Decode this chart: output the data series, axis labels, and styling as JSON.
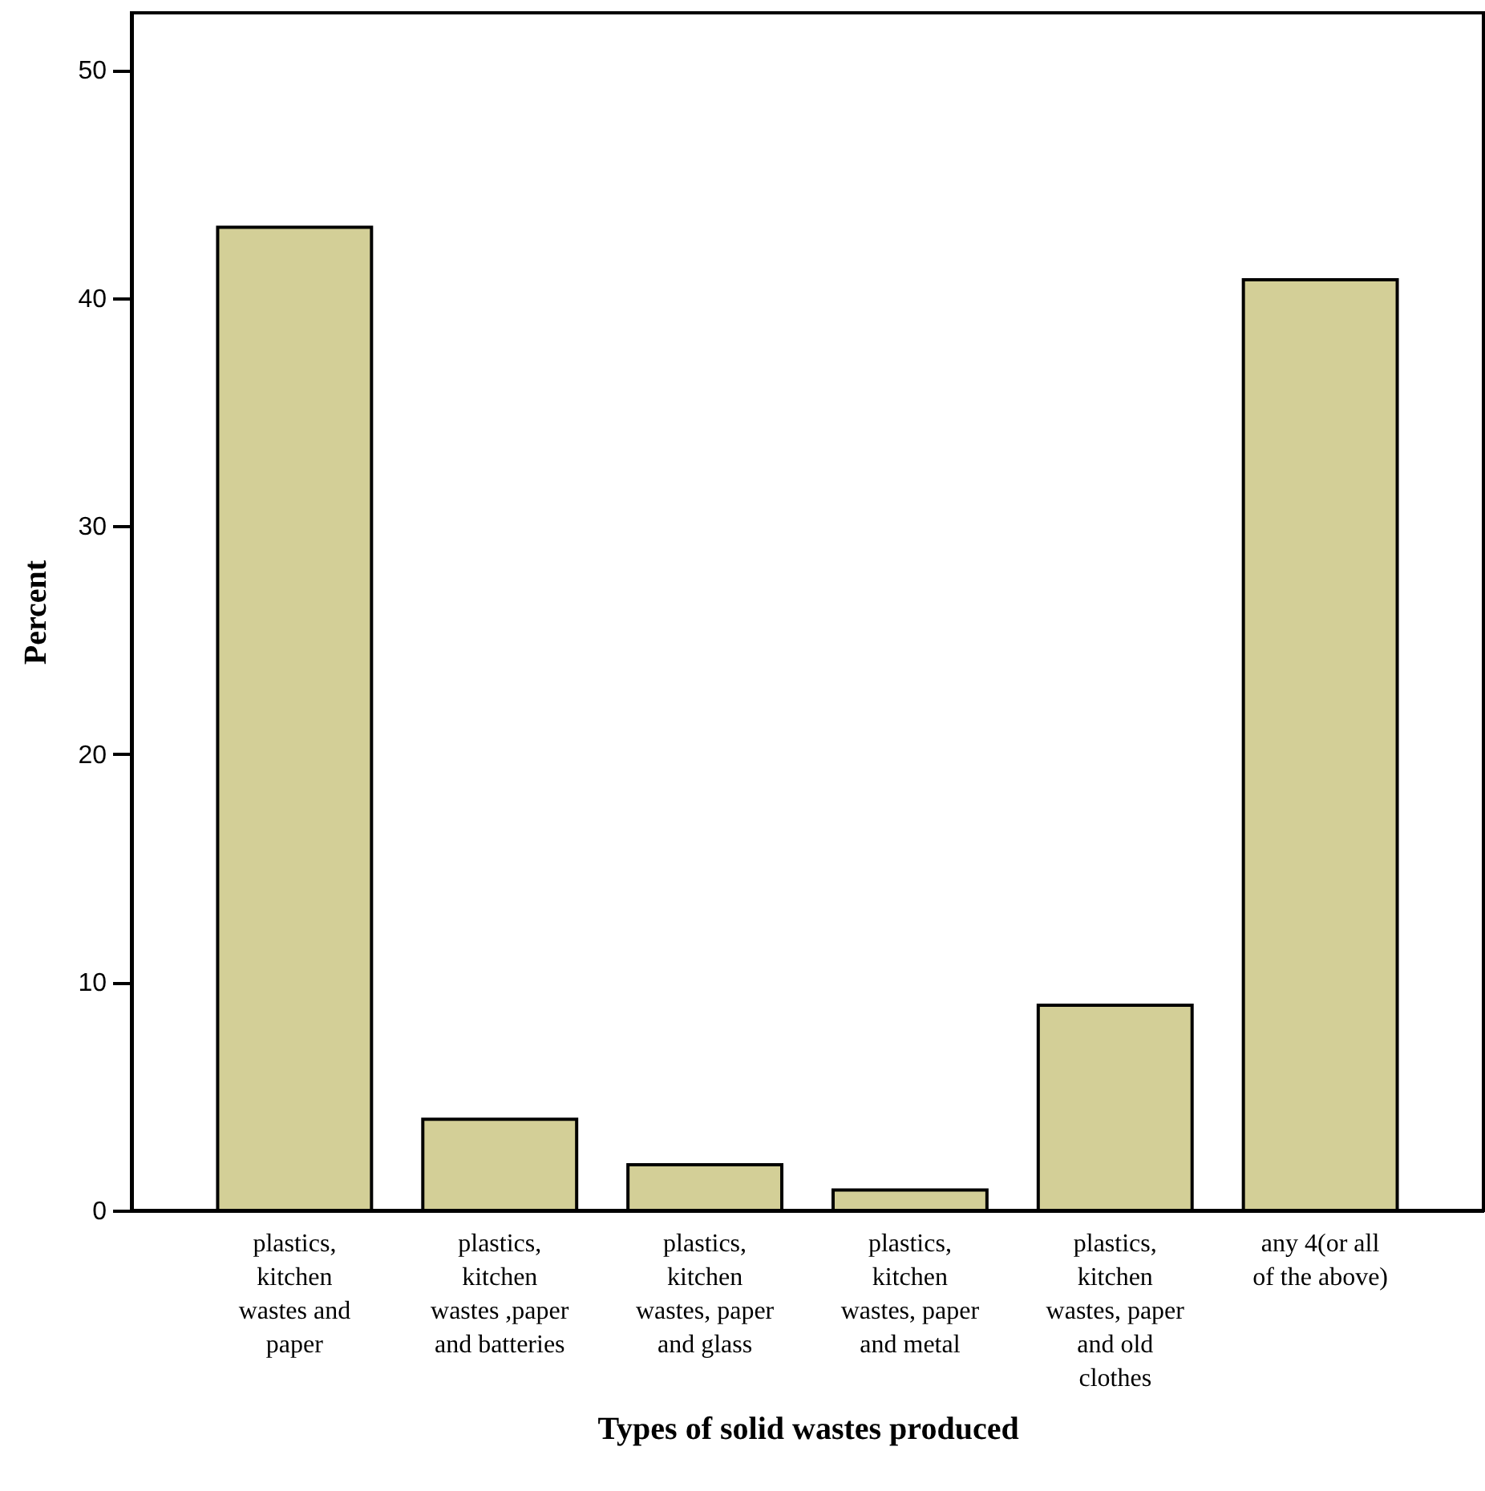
{
  "chart_data": {
    "type": "bar",
    "xlabel": "Types of solid wastes produced",
    "ylabel": "Percent",
    "categories": [
      "plastics, kitchen wastes and paper",
      "plastics, kitchen wastes ,paper and batteries",
      "plastics, kitchen wastes, paper and glass",
      "plastics, kitchen wastes, paper and metal",
      "plastics, kitchen wastes, paper and old clothes",
      "any 4(or all of the above)"
    ],
    "values": [
      43.1,
      4.0,
      2.0,
      0.9,
      9.0,
      40.8
    ],
    "color": "#d3cf97",
    "ylim": [
      0,
      52.5
    ],
    "yticks": [
      0,
      10,
      20,
      30,
      40,
      50
    ],
    "grid": false
  }
}
